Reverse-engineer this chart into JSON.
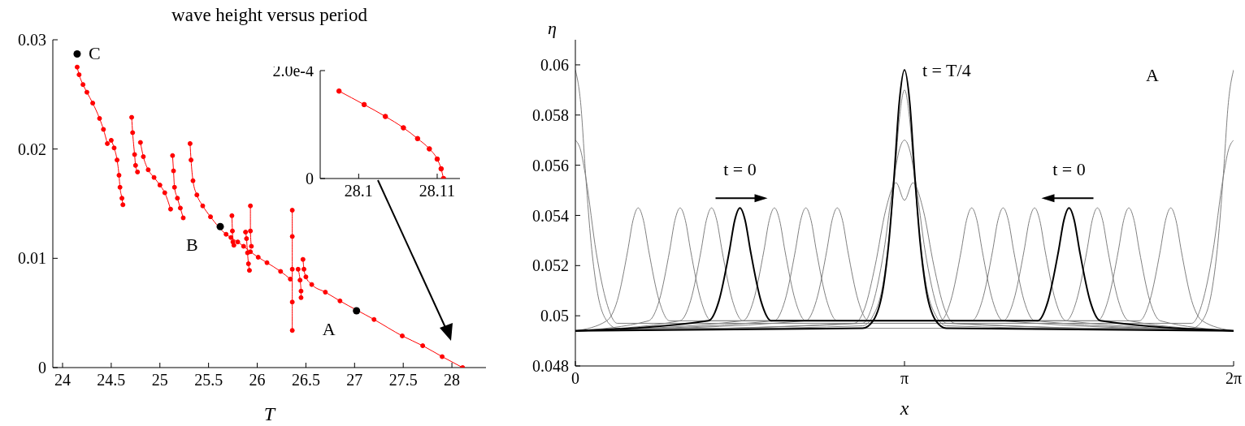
{
  "chart_data": [
    {
      "type": "line",
      "title": "wave height versus period",
      "xlabel": "T",
      "marker": "circle",
      "xlim": [
        23.9,
        28.35
      ],
      "ylim": [
        0,
        0.03
      ],
      "xticks": [
        24,
        24.5,
        25,
        25.5,
        26,
        26.5,
        27,
        27.5,
        28
      ],
      "yticks": [
        0,
        0.01,
        0.02,
        0.03
      ],
      "series": [
        {
          "color": "#ff0000",
          "x": [
            24.15,
            24.17,
            24.21,
            24.25,
            24.31,
            24.38,
            24.42,
            24.46
          ],
          "values": [
            0.0275,
            0.0268,
            0.0259,
            0.0252,
            0.0242,
            0.0228,
            0.0218,
            0.0205
          ]
        },
        {
          "color": "#ff0000",
          "x": [
            24.5,
            24.53,
            24.56,
            24.58,
            24.59,
            24.61,
            24.62
          ],
          "values": [
            0.0208,
            0.0201,
            0.019,
            0.0176,
            0.0165,
            0.0155,
            0.0149
          ]
        },
        {
          "color": "#ff0000",
          "x": [
            24.71,
            24.72,
            24.74,
            24.75,
            24.77
          ],
          "values": [
            0.0229,
            0.0215,
            0.0195,
            0.0185,
            0.0179
          ]
        },
        {
          "color": "#ff0000",
          "x": [
            24.8,
            24.83,
            24.88,
            24.94,
            25,
            25.05,
            25.11
          ],
          "values": [
            0.0206,
            0.0193,
            0.0181,
            0.0174,
            0.0167,
            0.016,
            0.0145
          ]
        },
        {
          "color": "#ff0000",
          "x": [
            25.13,
            25.14,
            25.15,
            25.18,
            25.21,
            25.24
          ],
          "values": [
            0.0194,
            0.018,
            0.0165,
            0.0155,
            0.0146,
            0.0137
          ]
        },
        {
          "color": "#ff0000",
          "x": [
            25.31,
            25.32,
            25.34,
            25.38,
            25.44,
            25.52,
            25.61,
            25.68,
            25.73,
            25.8,
            25.86,
            25.93,
            26.01,
            26.1,
            26.24,
            26.34
          ],
          "values": [
            0.0205,
            0.019,
            0.0171,
            0.0158,
            0.0148,
            0.0138,
            null,
            0.0122,
            0.0119,
            0.0115,
            0.0111,
            0.0106,
            0.0101,
            0.0096,
            0.0088,
            0.0081
          ]
        },
        {
          "color": "#ff0000",
          "x": [
            25.74,
            25.745,
            25.75,
            25.76
          ],
          "values": [
            0.0139,
            0.0125,
            0.0115,
            0.0112
          ]
        },
        {
          "color": "#ff0000",
          "x": [
            25.88,
            25.89,
            25.9,
            25.91,
            25.92
          ],
          "values": [
            0.0124,
            0.0118,
            0.0105,
            0.0095,
            0.0089
          ]
        },
        {
          "color": "#ff0000",
          "x": [
            25.93,
            25.93,
            25.94
          ],
          "values": [
            0.0148,
            0.0125,
            0.0111
          ]
        },
        {
          "color": "#ff0000",
          "x": [
            26.36,
            26.36,
            26.36,
            26.36,
            26.36
          ],
          "values": [
            0.0144,
            0.012,
            0.009,
            0.006,
            0.0034
          ]
        },
        {
          "color": "#ff0000",
          "x": [
            26.42,
            26.44,
            26.45,
            26.45
          ],
          "values": [
            0.009,
            0.008,
            0.007,
            0.0064
          ]
        },
        {
          "color": "#ff0000",
          "x": [
            26.47,
            26.48,
            26.5,
            26.56,
            26.7,
            26.85,
            27.01,
            27.2,
            27.49,
            27.7,
            27.9,
            28.11
          ],
          "values": [
            0.0099,
            0.009,
            0.0083,
            0.0076,
            0.0069,
            0.0061,
            null,
            0.0044,
            0.0029,
            0.002,
            0.001,
            0
          ]
        },
        {
          "type": "scatter",
          "color": "#000000",
          "x": [
            24.15,
            25.62,
            27.02
          ],
          "values": [
            0.0287,
            0.0129,
            0.0052
          ]
        }
      ],
      "annotations": [
        {
          "text": "C",
          "x": 24.15,
          "y": 0.0287
        },
        {
          "text": "B",
          "x": 25.62,
          "y": 0.0129
        },
        {
          "text": "A",
          "x": 27.02,
          "y": 0.0052
        }
      ]
    },
    {
      "type": "line",
      "marker": "circle",
      "xlim": [
        28.0951,
        28.1129
      ],
      "ylim": [
        0,
        0.0002
      ],
      "xticks": [
        28.1,
        28.11
      ],
      "yticks": [
        0,
        {
          "value": 0.0002,
          "label": "2.0e-4"
        }
      ],
      "series": [
        {
          "color": "#ff0000",
          "x": [
            28.0975,
            28.1007,
            28.1034,
            28.1057,
            28.1075,
            28.109,
            28.11,
            28.1105,
            28.1108
          ],
          "values": [
            0.000162,
            0.000137,
            0.000115,
            9.4e-05,
            7.4e-05,
            5.5e-05,
            3.6e-05,
            1.8e-05,
            0
          ]
        }
      ]
    },
    {
      "type": "line",
      "marker": "none",
      "xlabel": "x",
      "ylabel": "η",
      "xlim": [
        0,
        6.2832
      ],
      "ylim": [
        0.048,
        0.061
      ],
      "xticks": [
        0,
        {
          "value": 3.1416,
          "label": "π"
        },
        {
          "value": 6.2832,
          "label": "2π"
        }
      ],
      "yticks": [
        0.048,
        0.05,
        0.052,
        0.054,
        0.056,
        0.058,
        0.06
      ],
      "series": [
        {
          "color": "#808080",
          "x": [
            0,
            0.05,
            0.1,
            0.15,
            0.2,
            0.3,
            0.4,
            5.8832,
            5.9832,
            6.0832,
            6.1332,
            6.1832,
            6.2332,
            6.2832
          ],
          "values": [
            0.0598,
            0.0585,
            0.0555,
            0.0529,
            0.0512,
            0.0498,
            0.0495,
            0.0495,
            0.0498,
            0.0512,
            0.0529,
            0.0555,
            0.0585,
            0.0598
          ]
        },
        {
          "color": "#808080",
          "x": [
            0,
            0.05,
            0.1,
            0.2,
            0.3,
            0.4,
            5.8832,
            5.9832,
            6.0832,
            6.1832,
            6.2332,
            6.2832
          ],
          "values": [
            0.057,
            0.0566,
            0.0555,
            0.0525,
            0.0505,
            0.0497,
            0.0497,
            0.0505,
            0.0525,
            0.0555,
            0.0566,
            0.057
          ]
        },
        {
          "color": "#808080",
          "x": [
            0,
            0.3,
            0.4,
            0.5,
            0.55,
            0.6,
            0.65,
            0.7,
            0.8,
            0.9,
            5.3832,
            5.4832,
            5.5832,
            5.6332,
            5.6832,
            5.7332,
            5.7832,
            5.8832,
            5.9832,
            6.2832
          ],
          "values": [
            0.0494,
            0.0498,
            0.0506,
            0.0526,
            0.0538,
            0.0543,
            0.0538,
            0.0526,
            0.0506,
            0.0498,
            0.0498,
            0.0506,
            0.0526,
            0.0538,
            0.0543,
            0.0538,
            0.0526,
            0.0506,
            0.0498,
            0.0494
          ]
        },
        {
          "color": "#808080",
          "x": [
            0,
            0.7,
            0.8,
            0.9,
            0.95,
            1.0,
            1.05,
            1.1,
            1.2,
            1.3,
            4.9832,
            5.0832,
            5.1832,
            5.2332,
            5.2832,
            5.3332,
            5.3832,
            5.4832,
            5.5832,
            6.2832
          ],
          "values": [
            0.0494,
            0.0498,
            0.0506,
            0.0526,
            0.0538,
            0.0543,
            0.0538,
            0.0526,
            0.0506,
            0.0498,
            0.0498,
            0.0506,
            0.0526,
            0.0538,
            0.0543,
            0.0538,
            0.0526,
            0.0506,
            0.0498,
            0.0494
          ]
        },
        {
          "color": "#808080",
          "x": [
            0,
            1.0,
            1.1,
            1.2,
            1.25,
            1.3,
            1.35,
            1.4,
            1.5,
            1.6,
            4.6832,
            4.7832,
            4.8832,
            4.9332,
            4.9832,
            5.0332,
            5.0832,
            5.1832,
            5.2832,
            6.2832
          ],
          "values": [
            0.0494,
            0.0498,
            0.0506,
            0.0526,
            0.0538,
            0.0543,
            0.0538,
            0.0526,
            0.0506,
            0.0498,
            0.0498,
            0.0506,
            0.0526,
            0.0538,
            0.0543,
            0.0538,
            0.0526,
            0.0506,
            0.0498,
            0.0494
          ]
        },
        {
          "color": "#808080",
          "x": [
            0,
            1.6,
            1.7,
            1.8,
            1.85,
            1.9,
            1.95,
            2.0,
            2.1,
            2.2,
            4.0832,
            4.1832,
            4.2832,
            4.3332,
            4.3832,
            4.4332,
            4.4832,
            4.5832,
            4.6832,
            6.2832
          ],
          "values": [
            0.0494,
            0.0498,
            0.0506,
            0.0526,
            0.0538,
            0.0543,
            0.0538,
            0.0526,
            0.0506,
            0.0498,
            0.0498,
            0.0506,
            0.0526,
            0.0538,
            0.0543,
            0.0538,
            0.0526,
            0.0506,
            0.0498,
            0.0494
          ]
        },
        {
          "color": "#808080",
          "x": [
            0,
            1.9,
            2.0,
            2.1,
            2.15,
            2.2,
            2.25,
            2.3,
            2.4,
            2.5,
            3.7832,
            3.8832,
            3.9832,
            4.0332,
            4.0832,
            4.1332,
            4.1832,
            4.2832,
            4.3832,
            6.2832
          ],
          "values": [
            0.0494,
            0.0498,
            0.0506,
            0.0526,
            0.0538,
            0.0543,
            0.0538,
            0.0526,
            0.0506,
            0.0498,
            0.0498,
            0.0506,
            0.0526,
            0.0538,
            0.0543,
            0.0538,
            0.0526,
            0.0506,
            0.0498,
            0.0494
          ]
        },
        {
          "color": "#808080",
          "x": [
            0,
            2.2,
            2.3,
            2.4,
            2.45,
            2.5,
            2.55,
            2.6,
            2.7,
            2.8,
            3.4832,
            3.5832,
            3.6832,
            3.7332,
            3.7832,
            3.8332,
            3.8832,
            3.9832,
            4.0832,
            6.2832
          ],
          "values": [
            0.0494,
            0.0498,
            0.0506,
            0.0526,
            0.0538,
            0.0543,
            0.0538,
            0.0526,
            0.0506,
            0.0498,
            0.0498,
            0.0506,
            0.0526,
            0.0538,
            0.0543,
            0.0538,
            0.0526,
            0.0506,
            0.0498,
            0.0494
          ]
        },
        {
          "color": "#808080",
          "x": [
            0,
            2.6616,
            2.7616,
            2.8616,
            2.9616,
            3.0616,
            3.1416,
            3.2216,
            3.3216,
            3.4216,
            3.5216,
            3.6216,
            6.2832
          ],
          "values": [
            0.0494,
            0.0497,
            0.0503,
            0.052,
            0.0542,
            0.0553,
            0.0546,
            0.0553,
            0.0542,
            0.052,
            0.0503,
            0.0497,
            0.0494
          ]
        },
        {
          "color": "#808080",
          "x": [
            0,
            2.7416,
            2.8416,
            2.9416,
            3.0416,
            3.0916,
            3.1416,
            3.1916,
            3.2416,
            3.3416,
            3.4416,
            3.5416,
            6.2832
          ],
          "values": [
            0.0494,
            0.0497,
            0.0505,
            0.0525,
            0.0555,
            0.0566,
            0.057,
            0.0566,
            0.0555,
            0.0525,
            0.0505,
            0.0497,
            0.0494
          ]
        },
        {
          "color": "#808080",
          "x": [
            0,
            2.7416,
            2.8416,
            2.9416,
            3.0416,
            3.0916,
            3.1416,
            3.1916,
            3.2416,
            3.3416,
            3.4416,
            3.5416,
            6.2832
          ],
          "values": [
            0.0494,
            0.0496,
            0.05,
            0.0514,
            0.0552,
            0.0578,
            0.059,
            0.0578,
            0.0552,
            0.0514,
            0.05,
            0.0496,
            0.0494
          ]
        },
        {
          "color": "#000000",
          "x": [
            0,
            1.2708,
            1.3708,
            1.4708,
            1.5208,
            1.5708,
            1.6208,
            1.6708,
            1.7708,
            1.8708,
            4.4124,
            4.5124,
            4.6124,
            4.6624,
            4.7124,
            4.7624,
            4.8124,
            4.9124,
            5.0124,
            6.2832
          ],
          "values": [
            0.0494,
            0.0498,
            0.0506,
            0.0526,
            0.0538,
            0.0543,
            0.0538,
            0.0526,
            0.0506,
            0.0498,
            0.0498,
            0.0506,
            0.0526,
            0.0538,
            0.0543,
            0.0538,
            0.0526,
            0.0506,
            0.0498,
            0.0494
          ]
        },
        {
          "color": "#000000",
          "x": [
            0,
            2.7416,
            2.8416,
            2.9416,
            2.9916,
            3.0416,
            3.0916,
            3.1416,
            3.1916,
            3.2416,
            3.2916,
            3.3416,
            3.4416,
            3.5416,
            6.2832
          ],
          "values": [
            0.0494,
            0.0495,
            0.0498,
            0.0512,
            0.0529,
            0.0555,
            0.0585,
            0.0598,
            0.0585,
            0.0555,
            0.0529,
            0.0512,
            0.0498,
            0.0495,
            0.0494
          ]
        }
      ],
      "annotations": [
        {
          "text": "t = T/4",
          "x": 3.1416,
          "y": 0.0598
        },
        {
          "text": "t = 0",
          "x": 1.5708,
          "y": 0.0543
        },
        {
          "text": "t = 0",
          "x": 4.7124,
          "y": 0.0543
        },
        "A"
      ]
    }
  ]
}
